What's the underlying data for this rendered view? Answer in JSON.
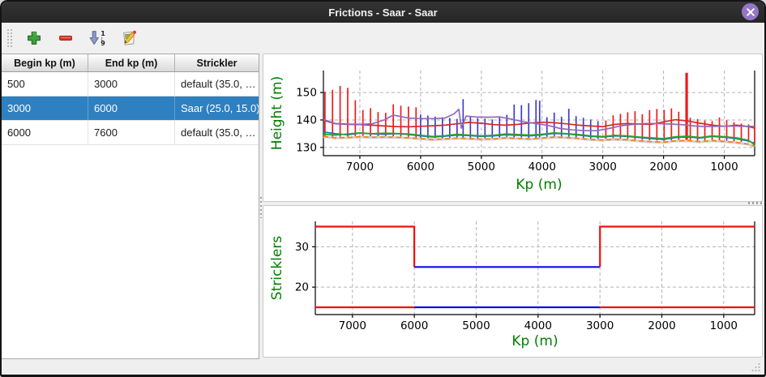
{
  "window": {
    "title": "Frictions - Saar - Saar",
    "close_icon": "x-close-icon",
    "close_button_color": "#9476c8",
    "titlebar_color": "#2d2d2d"
  },
  "toolbar": {
    "buttons": [
      {
        "name": "add",
        "icon": "plus-icon"
      },
      {
        "name": "remove",
        "icon": "minus-icon"
      },
      {
        "name": "sort",
        "icon": "sort-numeric-icon"
      },
      {
        "name": "edit",
        "icon": "edit-pencil-icon"
      }
    ]
  },
  "table": {
    "headers": [
      "Begin kp (m)",
      "End kp (m)",
      "Strickler"
    ],
    "rows": [
      [
        "500",
        "3000",
        "default (35.0, …"
      ],
      [
        "3000",
        "6000",
        "Saar (25.0, 15.0)"
      ],
      [
        "6000",
        "7600",
        "default (35.0, …"
      ]
    ],
    "selected_index": 1,
    "selection_color": "#2f80c0"
  },
  "chart_data": [
    {
      "id": "height-profile",
      "type": "line",
      "xlabel": "Kp (m)",
      "ylabel": "Height (m)",
      "axis_label_color": "#008000",
      "xlim": [
        7600,
        500
      ],
      "ylim": [
        127,
        158
      ],
      "x_ticks": [
        7000,
        6000,
        5000,
        4000,
        3000,
        2000,
        1000
      ],
      "y_ticks": [
        130,
        140,
        150
      ],
      "grid": true,
      "x_common": [
        7600,
        7400,
        7200,
        7000,
        6800,
        6600,
        6400,
        6200,
        6000,
        5800,
        5600,
        5400,
        5200,
        5000,
        4800,
        4600,
        4400,
        4200,
        4000,
        3800,
        3600,
        3400,
        3200,
        3000,
        2800,
        2600,
        2400,
        2200,
        2000,
        1800,
        1600,
        1400,
        1200,
        1000,
        800,
        600,
        500
      ],
      "vline_colors": {
        "r": "#ee1b1b",
        "b": "#3d3ccd"
      },
      "vlines": [
        [
          7575,
          133.9,
          150.3,
          "r"
        ],
        [
          7450,
          133.8,
          151.0,
          "r"
        ],
        [
          7325,
          133.7,
          152.4,
          "r"
        ],
        [
          7200,
          133.7,
          151.7,
          "r"
        ],
        [
          7075,
          133.6,
          147.2,
          "r"
        ],
        [
          6950,
          133.8,
          143.6,
          "r"
        ],
        [
          6825,
          133.9,
          144.3,
          "r"
        ],
        [
          6700,
          133.7,
          142.9,
          "r"
        ],
        [
          6575,
          133.6,
          142.6,
          "r"
        ],
        [
          6450,
          133.5,
          145.7,
          "r"
        ],
        [
          6325,
          133.4,
          145.2,
          "r"
        ],
        [
          6200,
          133.5,
          144.9,
          "r"
        ],
        [
          6075,
          133.3,
          144.6,
          "r"
        ],
        [
          6000,
          133.5,
          142.0,
          "b"
        ],
        [
          5880,
          133.4,
          141.6,
          "b"
        ],
        [
          5760,
          133.4,
          141.2,
          "b"
        ],
        [
          5640,
          133.3,
          141.0,
          "b"
        ],
        [
          5520,
          133.3,
          140.7,
          "b"
        ],
        [
          5400,
          133.4,
          140.4,
          "b"
        ],
        [
          5300,
          133.2,
          147.6,
          "b"
        ],
        [
          5180,
          133.3,
          141.2,
          "b"
        ],
        [
          5060,
          133.2,
          140.7,
          "b"
        ],
        [
          4940,
          133.2,
          140.5,
          "b"
        ],
        [
          4820,
          133.3,
          140.2,
          "b"
        ],
        [
          4700,
          133.4,
          140.9,
          "b"
        ],
        [
          4580,
          133.5,
          141.9,
          "b"
        ],
        [
          4460,
          133.5,
          145.6,
          "b"
        ],
        [
          4340,
          133.6,
          145.4,
          "b"
        ],
        [
          4220,
          133.5,
          146.1,
          "b"
        ],
        [
          4100,
          133.5,
          147.3,
          "b"
        ],
        [
          4040,
          133.4,
          147.0,
          "b"
        ],
        [
          3920,
          133.5,
          141.0,
          "b"
        ],
        [
          3800,
          133.6,
          142.7,
          "b"
        ],
        [
          3680,
          133.5,
          141.2,
          "b"
        ],
        [
          3560,
          133.4,
          144.1,
          "b"
        ],
        [
          3440,
          133.3,
          141.4,
          "b"
        ],
        [
          3320,
          133.2,
          140.8,
          "b"
        ],
        [
          3200,
          133.1,
          140.2,
          "b"
        ],
        [
          3080,
          133.0,
          139.6,
          "b"
        ],
        [
          2950,
          132.9,
          139.8,
          "r"
        ],
        [
          2830,
          132.8,
          141.7,
          "r"
        ],
        [
          2710,
          132.8,
          142.2,
          "r"
        ],
        [
          2590,
          132.7,
          142.8,
          "r"
        ],
        [
          2470,
          132.8,
          143.2,
          "r"
        ],
        [
          2350,
          132.7,
          142.1,
          "r"
        ],
        [
          2230,
          132.6,
          143.6,
          "r"
        ],
        [
          2110,
          132.5,
          144.0,
          "r"
        ],
        [
          1990,
          132.4,
          143.7,
          "r"
        ],
        [
          1870,
          132.3,
          144.2,
          "r"
        ],
        [
          1750,
          132.4,
          143.0,
          "r"
        ],
        [
          1620,
          132.5,
          157.2,
          "r",
          3.2
        ],
        [
          1560,
          132.4,
          140.8,
          "r"
        ],
        [
          1440,
          132.3,
          140.3,
          "r"
        ],
        [
          1320,
          132.2,
          139.8,
          "r"
        ],
        [
          1200,
          132.2,
          139.6,
          "r"
        ],
        [
          1080,
          132.3,
          140.9,
          "r"
        ],
        [
          960,
          132.2,
          139.9,
          "r"
        ],
        [
          840,
          132.1,
          139.2,
          "r"
        ],
        [
          720,
          132.0,
          138.7,
          "r"
        ],
        [
          600,
          131.9,
          138.4,
          "r"
        ],
        [
          500,
          131.8,
          138.0,
          "r"
        ]
      ],
      "series": [
        {
          "name": "bed-shadow",
          "color": "#d0d0d0",
          "width": 3,
          "y": [
            133.9,
            133.4,
            133.5,
            133.8,
            133.6,
            133.7,
            133.6,
            133.4,
            133.1,
            132.8,
            133.0,
            133.3,
            133.1,
            132.9,
            133.0,
            133.4,
            133.2,
            133.0,
            133.3,
            133.7,
            133.5,
            133.2,
            132.8,
            132.6,
            132.9,
            132.7,
            132.3,
            132.0,
            131.8,
            132.3,
            132.4,
            132.0,
            132.4,
            132.1,
            131.7,
            131.1,
            130.3
          ]
        },
        {
          "name": "bed-minor-orange",
          "color": "#ff7f0e",
          "width": 1.7,
          "dash": "6 4",
          "y": [
            134.0,
            133.5,
            133.6,
            133.9,
            133.7,
            133.8,
            133.7,
            133.5,
            133.2,
            132.9,
            133.1,
            133.4,
            133.2,
            133.0,
            133.1,
            133.5,
            133.3,
            133.1,
            133.4,
            133.8,
            133.6,
            133.3,
            132.9,
            132.7,
            133.0,
            132.8,
            132.4,
            132.1,
            131.9,
            132.4,
            132.5,
            132.1,
            132.5,
            132.2,
            131.8,
            131.2,
            130.4
          ]
        },
        {
          "name": "level-blue",
          "color": "#1f77b4",
          "width": 1.7,
          "y": [
            135.6,
            135.0,
            134.6,
            135.2,
            134.9,
            134.8,
            135.0,
            134.7,
            134.2,
            133.8,
            134.1,
            134.5,
            134.3,
            134.0,
            134.2,
            134.6,
            134.4,
            134.2,
            134.6,
            135.1,
            134.9,
            134.5,
            134.0,
            133.8,
            134.2,
            134.0,
            133.6,
            133.2,
            132.9,
            133.6,
            133.8,
            133.4,
            134.0,
            133.7,
            133.2,
            132.3,
            131.5
          ]
        },
        {
          "name": "level-green",
          "color": "#2ca02c",
          "width": 1.7,
          "y": [
            134.8,
            134.5,
            134.9,
            135.3,
            135.0,
            135.2,
            135.1,
            134.9,
            134.4,
            134.0,
            134.3,
            134.8,
            134.5,
            134.2,
            134.4,
            134.9,
            134.7,
            134.5,
            134.8,
            135.3,
            135.0,
            134.7,
            134.2,
            134.0,
            134.4,
            134.2,
            133.8,
            133.5,
            133.2,
            133.9,
            134.1,
            133.6,
            134.2,
            133.9,
            133.5,
            132.6,
            130.9
          ]
        },
        {
          "name": "level-red",
          "color": "#d62728",
          "width": 1.7,
          "y": [
            139.9,
            138.6,
            138.4,
            138.3,
            138.1,
            137.8,
            137.6,
            137.5,
            137.7,
            137.9,
            138.1,
            138.6,
            139.1,
            138.8,
            138.3,
            138.1,
            138.4,
            138.9,
            139.2,
            139.0,
            138.6,
            138.1,
            137.8,
            137.6,
            138.4,
            138.7,
            138.5,
            138.4,
            139.3,
            140.1,
            139.6,
            138.8,
            138.1,
            137.7,
            138.1,
            137.6,
            137.0
          ]
        },
        {
          "name": "level-purple",
          "color": "#9467bd",
          "width": 1.7,
          "x": [
            7600,
            7400,
            7200,
            7000,
            6800,
            6600,
            6450,
            6200,
            6000,
            5800,
            5600,
            5450,
            5370,
            5330,
            5250,
            5100,
            4900,
            4700,
            4500,
            4300,
            4100,
            3900,
            3700,
            3500,
            3300,
            3100,
            2900,
            2700,
            2500,
            2300,
            2100,
            1900,
            1700,
            1500,
            1300,
            1100,
            900,
            700,
            500
          ],
          "y": [
            140.2,
            138.7,
            138.5,
            138.4,
            138.6,
            140.0,
            141.8,
            140.7,
            140.5,
            140.5,
            140.7,
            142.2,
            143.9,
            137.0,
            141.4,
            141.1,
            141.0,
            141.1,
            140.3,
            139.3,
            138.7,
            138.0,
            136.9,
            136.4,
            136.1,
            136.1,
            136.9,
            137.9,
            138.4,
            138.7,
            138.7,
            138.5,
            138.3,
            137.8,
            137.6,
            137.7,
            137.8,
            137.7,
            137.7
          ]
        }
      ]
    },
    {
      "id": "stricklers",
      "type": "step",
      "xlabel": "Kp (m)",
      "ylabel": "Stricklers",
      "axis_label_color": "#008000",
      "xlim": [
        7600,
        500
      ],
      "ylim": [
        13.2,
        36.3
      ],
      "x_ticks": [
        7000,
        6000,
        5000,
        4000,
        3000,
        2000,
        1000
      ],
      "y_ticks": [
        20,
        30
      ],
      "grid": true,
      "segments": [
        {
          "name": "default-main-left",
          "color": "#f50f0f",
          "points": [
            [
              7600,
              35
            ],
            [
              6000,
              35
            ],
            [
              6000,
              25
            ]
          ]
        },
        {
          "name": "saar-main",
          "color": "#0d0dee",
          "points": [
            [
              6000,
              25
            ],
            [
              3000,
              25
            ]
          ]
        },
        {
          "name": "default-main-right",
          "color": "#f50f0f",
          "points": [
            [
              3000,
              25
            ],
            [
              3000,
              35
            ],
            [
              500,
              35
            ]
          ]
        },
        {
          "name": "default-minor-left",
          "color": "#f50f0f",
          "points": [
            [
              7600,
              15
            ],
            [
              6000,
              15
            ]
          ]
        },
        {
          "name": "saar-minor",
          "color": "#0d0dee",
          "points": [
            [
              6000,
              15
            ],
            [
              3000,
              15
            ]
          ]
        },
        {
          "name": "default-minor-right",
          "color": "#f50f0f",
          "points": [
            [
              3000,
              15
            ],
            [
              500,
              15
            ]
          ]
        }
      ]
    }
  ]
}
